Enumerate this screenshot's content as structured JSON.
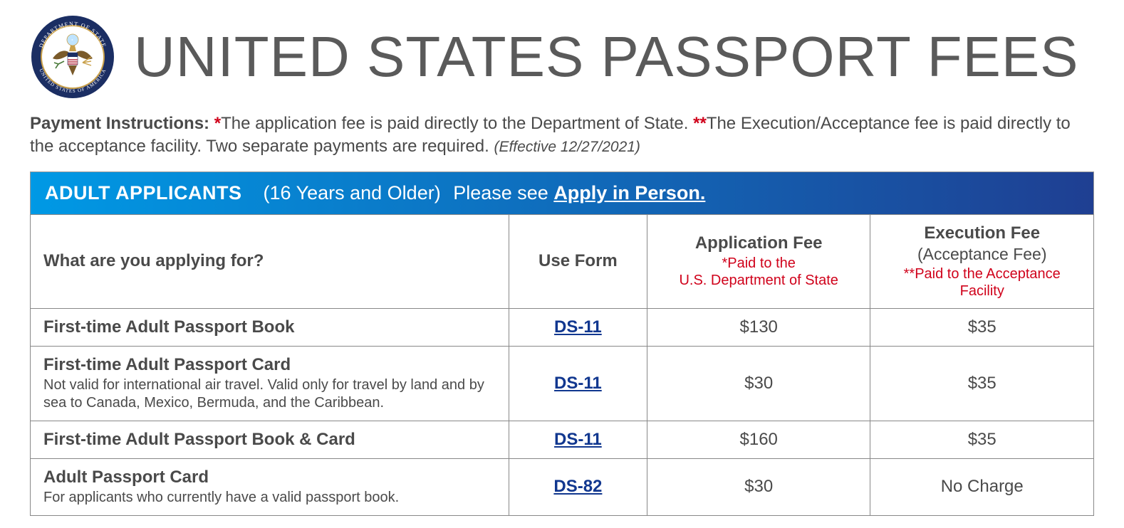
{
  "title": "UNITED STATES PASSPORT FEES",
  "seal": {
    "outer_color": "#1b2e63",
    "inner_color": "#ffffff",
    "gold": "#c9a04a",
    "top_text": "DEPARTMENT OF STATE",
    "bottom_text": "UNITED STATES OF AMERICA"
  },
  "instructions": {
    "label": "Payment Instructions:",
    "star1": "*",
    "text1": "The application fee is paid directly to the Department of State. ",
    "star2": "**",
    "text2": "The Execution/Acceptance fee is paid directly to the acceptance facility. Two separate payments are required. ",
    "effective": "(Effective 12/27/2021)"
  },
  "section": {
    "category": "ADULT APPLICANTS",
    "paren": "(16 Years and Older)",
    "please": "Please see ",
    "link_text": "Apply in Person."
  },
  "columns": {
    "what": "What are you applying for?",
    "form": "Use Form",
    "app_fee": "Application Fee",
    "app_fee_sub": "*Paid to the\nU.S. Department of State",
    "exec_fee": "Execution Fee",
    "exec_fee_sub_gray": "(Acceptance Fee)",
    "exec_fee_sub_red": "**Paid to the Acceptance Facility"
  },
  "rows": [
    {
      "label": "First-time Adult Passport Book",
      "note": "",
      "form": "DS-11",
      "app_fee": "$130",
      "exec_fee": "$35"
    },
    {
      "label": "First-time Adult Passport Card",
      "note": "Not valid for international air travel. Valid only for travel by land and by sea to Canada, Mexico, Bermuda, and the Caribbean.",
      "form": "DS-11",
      "app_fee": "$30",
      "exec_fee": "$35"
    },
    {
      "label": "First-time Adult Passport Book & Card",
      "note": "",
      "form": "DS-11",
      "app_fee": "$160",
      "exec_fee": "$35"
    },
    {
      "label": "Adult Passport Card",
      "note": "For applicants who currently have a valid passport book.",
      "form": "DS-82",
      "app_fee": "$30",
      "exec_fee": "No Charge"
    }
  ],
  "colors": {
    "text": "#4a4a4a",
    "red": "#d0021b",
    "link_blue": "#11378f",
    "bar_grad_start": "#0099e5",
    "bar_grad_end": "#1f3f92",
    "border": "#888888"
  }
}
